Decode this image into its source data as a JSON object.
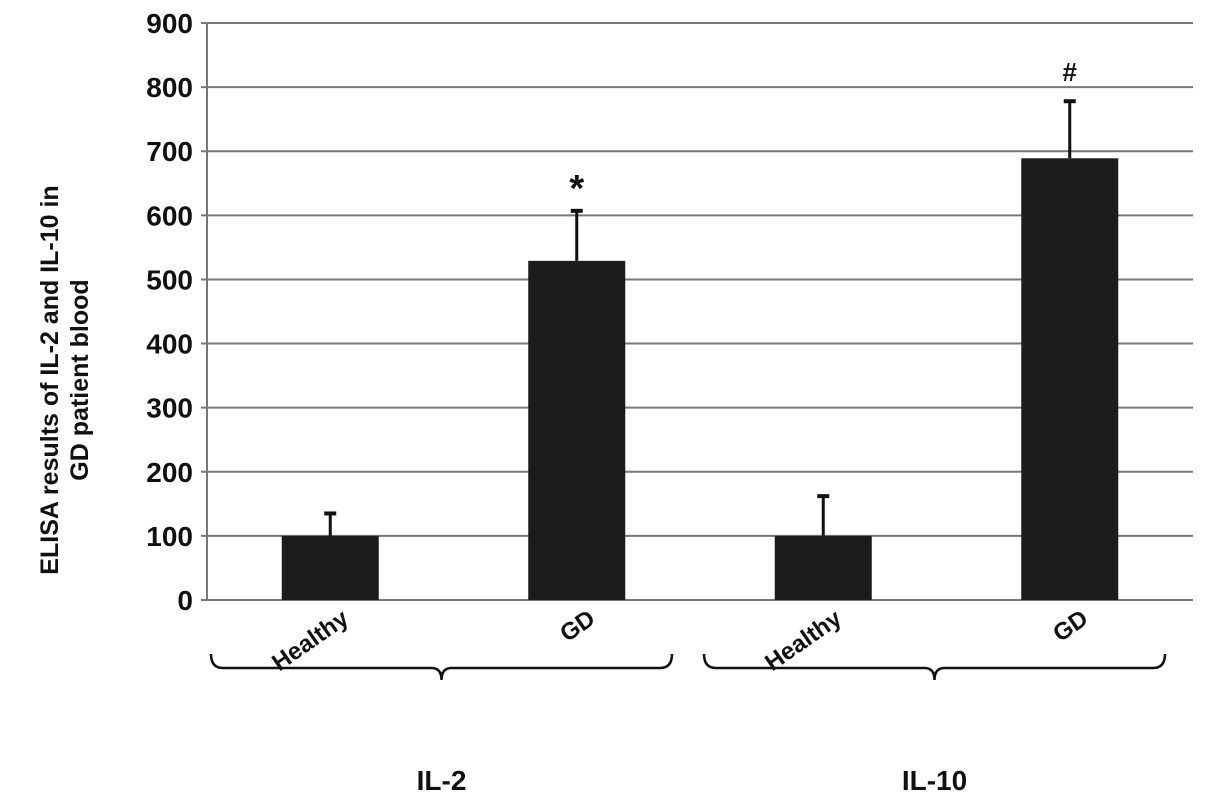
{
  "chart_data": {
    "type": "bar",
    "title": "",
    "ylabel": "ELISA results of IL-2 and IL-10 in GD patient blood",
    "ylabel_lines": [
      "ELISA results of IL-2 and IL-10 in",
      "GD patient blood"
    ],
    "xlabel": "",
    "ylim": [
      0,
      900
    ],
    "yticks": [
      "0",
      "100",
      "200",
      "300",
      "400",
      "500",
      "600",
      "700",
      "800",
      "900"
    ],
    "grid": true,
    "bar_color": "#1c1c1c",
    "categories": [
      "Healthy",
      "GD",
      "Healthy",
      "GD"
    ],
    "groups": [
      {
        "label": "IL-2",
        "members": [
          0,
          1
        ]
      },
      {
        "label": "IL-10",
        "members": [
          2,
          3
        ]
      }
    ],
    "values": [
      100,
      529,
      100,
      689
    ],
    "error_upper": [
      135,
      607,
      162,
      778
    ],
    "annotations": [
      "",
      "*",
      "",
      "#"
    ]
  }
}
